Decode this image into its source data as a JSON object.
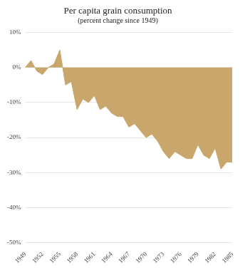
{
  "chart_data": {
    "type": "area",
    "title": "Per capita grain consumption",
    "subtitle": "(percent change since 1949)",
    "categories": [
      "1949",
      null,
      null,
      "1952",
      null,
      null,
      "1955",
      null,
      null,
      "1958",
      null,
      null,
      "1961",
      null,
      null,
      "1964",
      null,
      null,
      "1967",
      null,
      null,
      "1970",
      null,
      null,
      "1973",
      null,
      null,
      "1976",
      null,
      null,
      "1979",
      null,
      null,
      "1982",
      null,
      null,
      "1985"
    ],
    "values": [
      0,
      2,
      -1,
      -2,
      0,
      1,
      5,
      -5,
      -4,
      -12,
      -9,
      -10,
      -8,
      -12,
      -11,
      -13,
      -14,
      -14,
      -17,
      -16,
      -18,
      -20,
      -19,
      -21,
      -24,
      -26,
      -24,
      -25,
      -26,
      -26,
      -22,
      -25,
      -26,
      -23,
      -29,
      -27,
      -27
    ],
    "color": "#c9a66b",
    "ylim": [
      -50,
      10
    ],
    "yticks": [
      {
        "value": -50,
        "label": "-50%"
      },
      {
        "value": -40,
        "label": "-40%"
      },
      {
        "value": -30,
        "label": "-30%"
      },
      {
        "value": -20,
        "label": "-20%"
      },
      {
        "value": -10,
        "label": "-10%"
      },
      {
        "value": 0,
        "label": "0%"
      },
      {
        "value": 10,
        "label": "10%"
      }
    ],
    "grid": true
  }
}
